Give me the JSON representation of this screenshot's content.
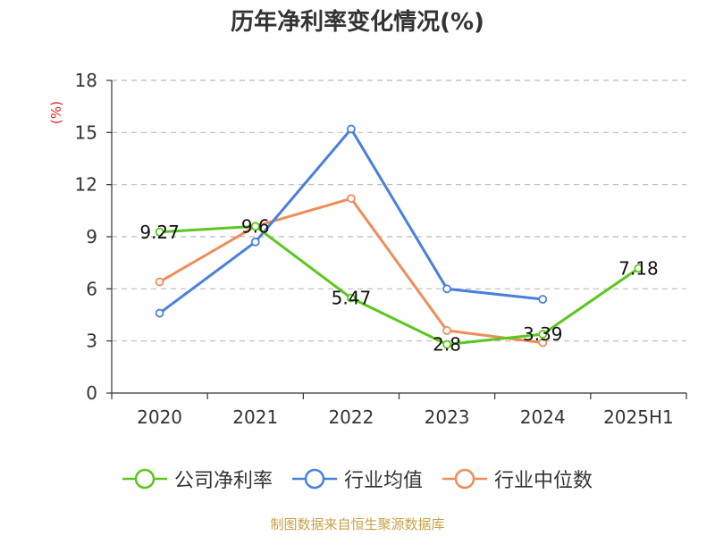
{
  "chart_data": {
    "type": "line",
    "title": "历年净利率变化情况(%)",
    "ylabel": "(%)",
    "xlabel": "",
    "categories": [
      "2020",
      "2021",
      "2022",
      "2023",
      "2024",
      "2025H1"
    ],
    "ylim": [
      0,
      18
    ],
    "yticks": [
      0,
      3,
      6,
      9,
      12,
      15,
      18
    ],
    "grid": true,
    "legend_position": "bottom",
    "series": [
      {
        "name": "公司净利率",
        "color": "#5cc61e",
        "show_labels": true,
        "values": [
          9.27,
          9.6,
          5.47,
          2.8,
          3.39,
          7.18
        ]
      },
      {
        "name": "行业均值",
        "color": "#4a7fdd",
        "show_labels": false,
        "values": [
          4.6,
          8.7,
          15.2,
          6.0,
          5.4,
          null
        ]
      },
      {
        "name": "行业中位数",
        "color": "#f08c5a",
        "show_labels": false,
        "values": [
          6.4,
          9.6,
          11.2,
          3.6,
          2.9,
          null
        ]
      }
    ],
    "data_labels": [
      "9.27",
      "9.6",
      "5.47",
      "2.8",
      "3.39",
      "7.18"
    ]
  },
  "source_note": "制图数据来自恒生聚源数据库",
  "colors": {
    "axis": "#333333",
    "grid": "#bbbbbb",
    "ylabel": "#dd2222",
    "source": "#c8a24a"
  }
}
